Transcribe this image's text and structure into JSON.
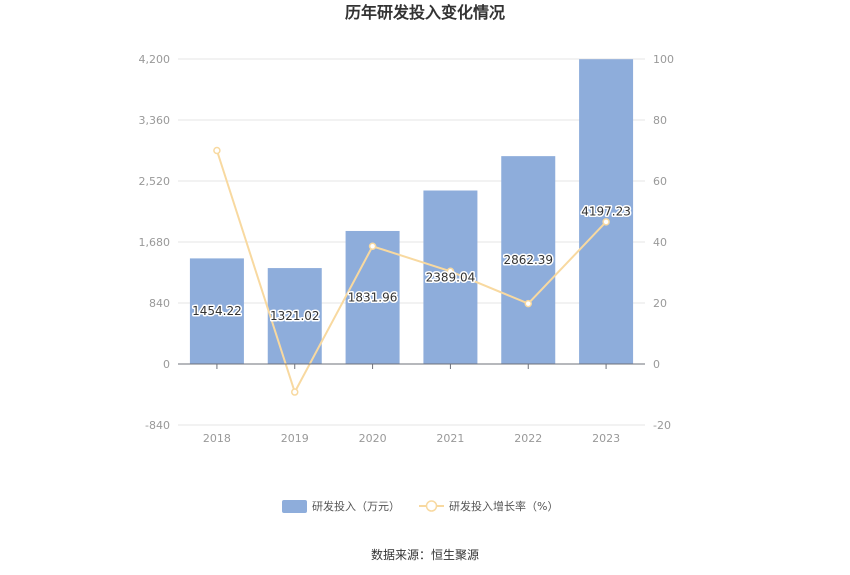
{
  "chart_data": {
    "type": "bar",
    "title": "历年研发投入变化情况",
    "categories": [
      "2018",
      "2019",
      "2020",
      "2021",
      "2022",
      "2023"
    ],
    "series": [
      {
        "name": "研发投入（万元）",
        "type": "bar",
        "axis": "left",
        "color": "#8eaddb",
        "values": [
          1454.22,
          1321.02,
          1831.96,
          2389.04,
          2862.39,
          4197.23
        ],
        "labels": [
          "1454.22",
          "1321.02",
          "1831.96",
          "2389.04",
          "2862.39",
          "4197.23"
        ]
      },
      {
        "name": "研发投入增长率（%）",
        "type": "line",
        "axis": "right",
        "color": "#f8d9a0",
        "values": [
          70.0,
          -9.2,
          38.6,
          30.4,
          19.8,
          46.6
        ]
      }
    ],
    "y_left": {
      "ticks": [
        "4,200",
        "3,360",
        "2,520",
        "1,680",
        "840",
        "0",
        "-840"
      ],
      "min": -840,
      "max": 4200
    },
    "y_right": {
      "ticks": [
        "100",
        "80",
        "60",
        "40",
        "20",
        "0",
        "-20"
      ],
      "min": -20,
      "max": 100
    },
    "grid": true,
    "legend_position": "bottom"
  },
  "source_text": "数据来源：恒生聚源"
}
